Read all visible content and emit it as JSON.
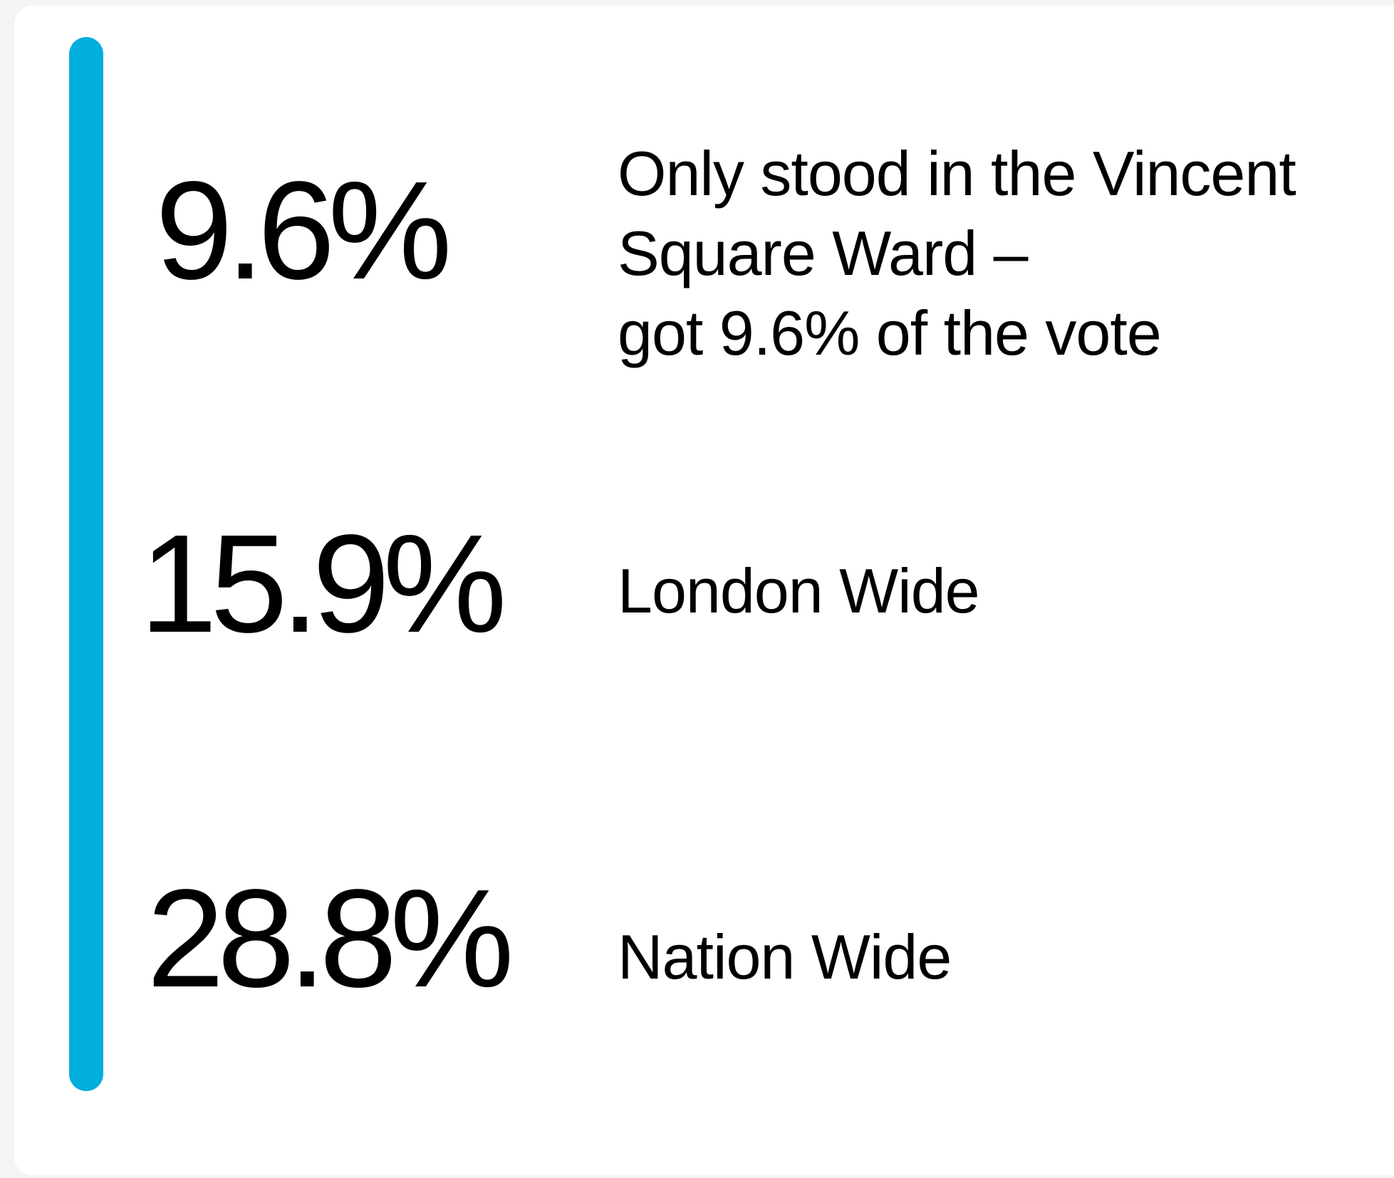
{
  "stats": [
    {
      "value": "9.6%",
      "description": [
        "Only stood in the Vincent",
        "Square Ward –",
        "got 9.6% of the vote"
      ]
    },
    {
      "value": "15.9%",
      "description": [
        "London Wide"
      ]
    },
    {
      "value": "28.8%",
      "description": [
        "Nation Wide"
      ]
    }
  ]
}
